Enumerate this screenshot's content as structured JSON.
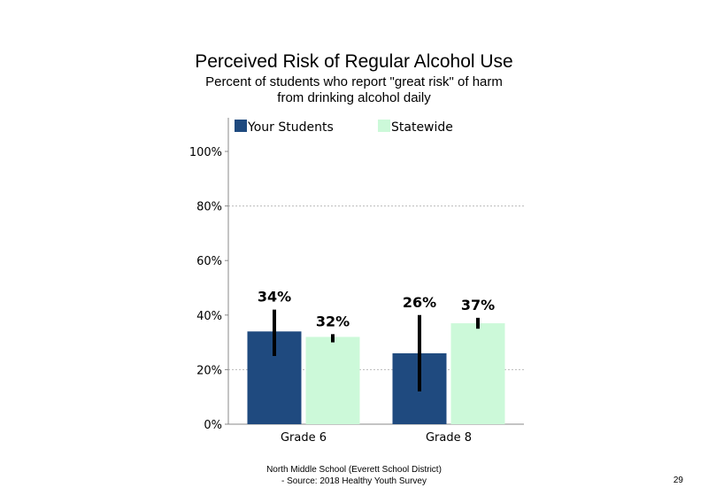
{
  "header": {
    "title": "Perceived Risk of Regular Alcohol Use",
    "subtitle_line1": "Percent of students who report \"great risk\" of harm",
    "subtitle_line2": "from drinking alcohol daily"
  },
  "footer": {
    "line1": "North Middle School (Everett School District)",
    "line2": "- Source: 2018 Healthy Youth Survey",
    "page_number": "29"
  },
  "colors": {
    "your_students": "#1f4a7f",
    "statewide": "#ccf9d9",
    "error_bar": "#000000",
    "gridline": "#bbbbbb"
  },
  "chart_data": {
    "type": "bar",
    "categories": [
      "Grade 6",
      "Grade 8"
    ],
    "series": [
      {
        "name": "Your Students",
        "values": [
          34,
          26
        ],
        "labels": [
          "34%",
          "26%"
        ],
        "error_low": [
          25,
          12
        ],
        "error_high": [
          42,
          40
        ]
      },
      {
        "name": "Statewide",
        "values": [
          32,
          37
        ],
        "labels": [
          "32%",
          "37%"
        ],
        "error_low": [
          30,
          35
        ],
        "error_high": [
          33,
          39
        ]
      }
    ],
    "ylim": [
      0,
      100
    ],
    "yticks": [
      0,
      20,
      40,
      60,
      80,
      100
    ],
    "ytick_labels": [
      "0%",
      "20%",
      "40%",
      "60%",
      "80%",
      "100%"
    ],
    "gridlines": [
      20,
      80
    ],
    "legend_position": "top"
  }
}
